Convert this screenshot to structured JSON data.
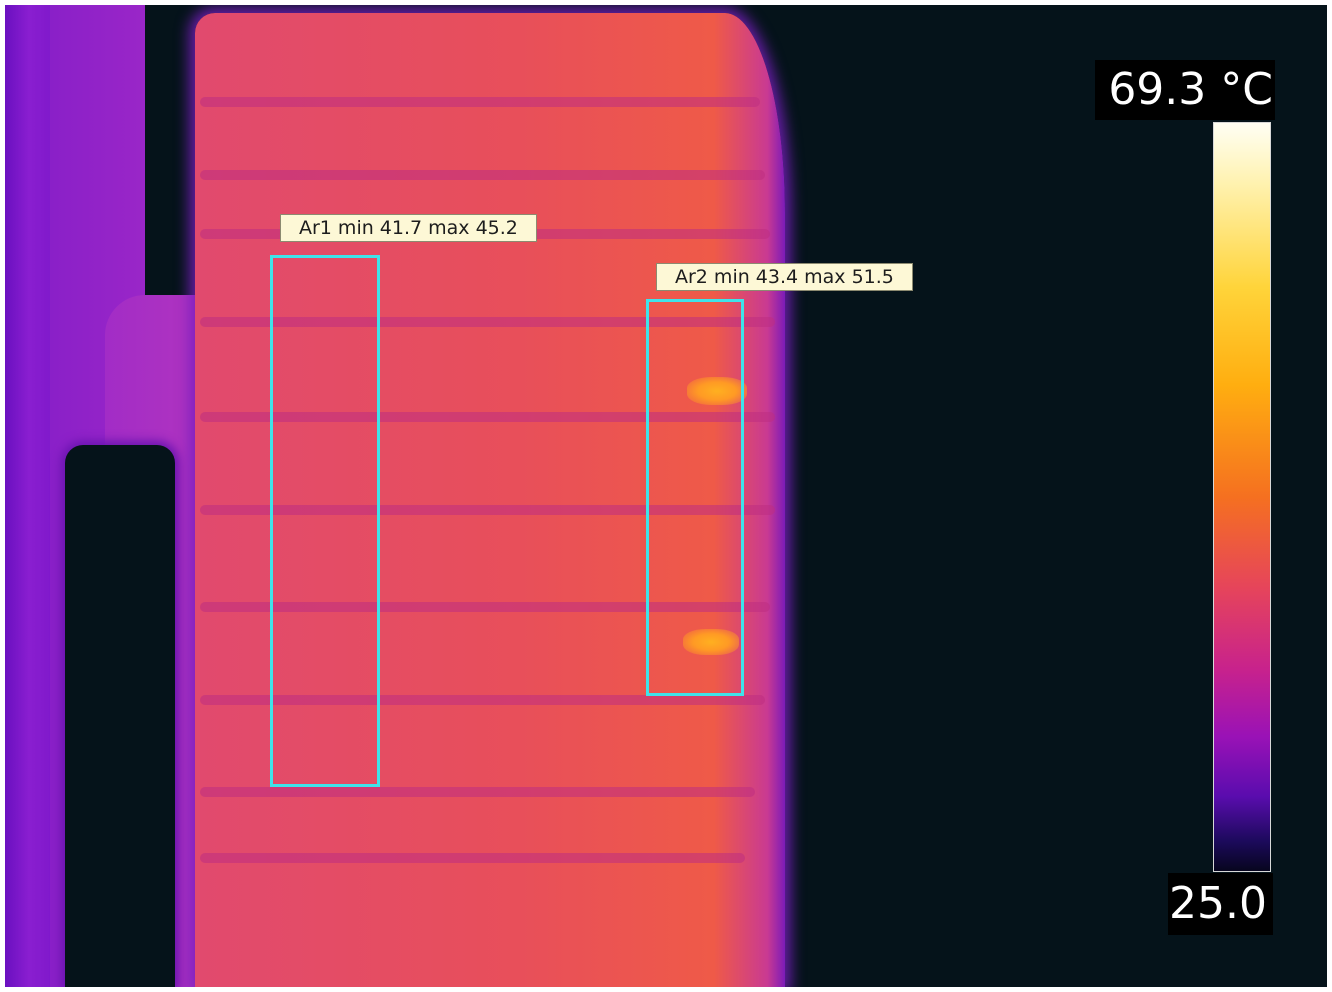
{
  "measurements": [
    {
      "name": "Ar1",
      "label": "Ar1 min 41.7 max 45.2",
      "min": 41.7,
      "max": 45.2
    },
    {
      "name": "Ar2",
      "label": "Ar2 min 43.4 max 51.5",
      "min": 43.4,
      "max": 51.5
    }
  ],
  "scale": {
    "max_label": "69.3 °C",
    "min_label": "25.0",
    "max": 69.3,
    "min": 25.0,
    "unit": "°C",
    "palette": "iron"
  },
  "colors": {
    "roi_outline": "#3fe3ea",
    "label_background": "#fdf8d6",
    "scene_background": "#05131a"
  }
}
